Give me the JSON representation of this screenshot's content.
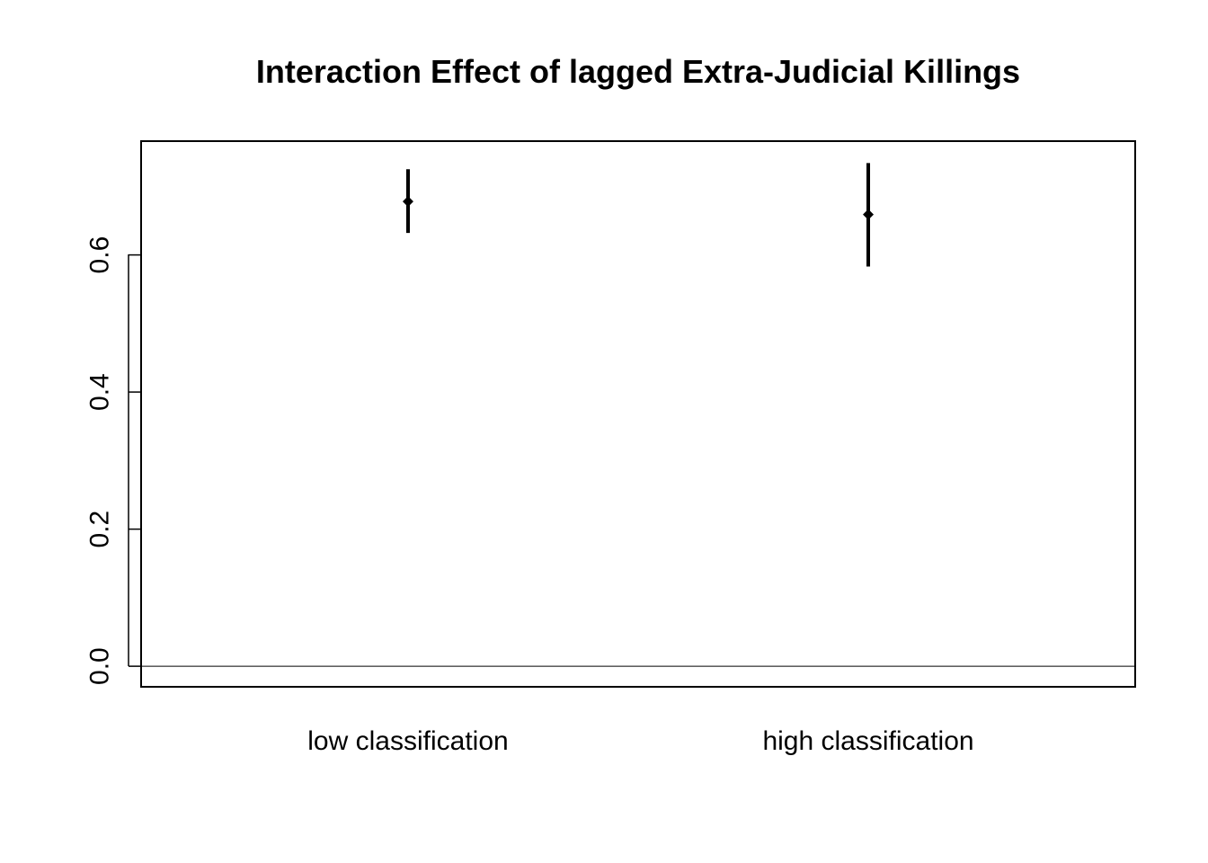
{
  "chart_data": {
    "type": "scatter",
    "title": "Interaction Effect of lagged Extra-Judicial Killings",
    "xlabel": "",
    "ylabel": "",
    "categories": [
      "low classification",
      "high classification"
    ],
    "points": [
      {
        "category": "low classification",
        "estimate": 0.678,
        "lower": 0.632,
        "upper": 0.725
      },
      {
        "category": "high classification",
        "estimate": 0.659,
        "lower": 0.583,
        "upper": 0.734
      }
    ],
    "yticks": [
      "0.0",
      "0.2",
      "0.4",
      "0.6"
    ],
    "ylim": [
      -0.03,
      0.766
    ],
    "reference_line": 0,
    "grid": false,
    "colors": {
      "marks": "#000000",
      "axis": "#000000"
    }
  }
}
